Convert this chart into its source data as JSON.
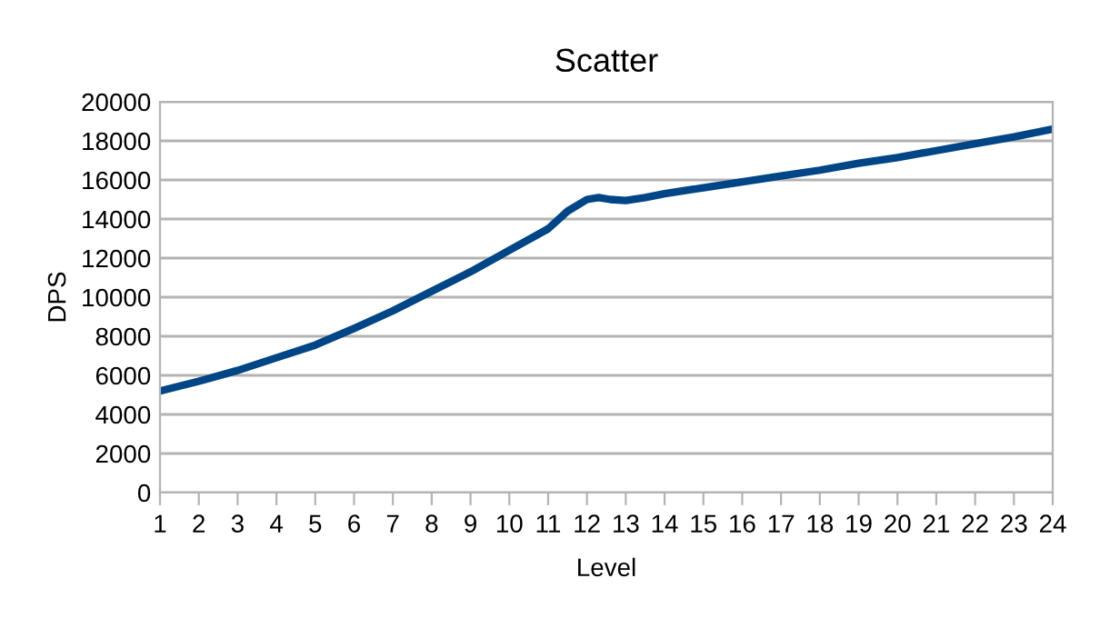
{
  "chart_data": {
    "type": "line",
    "title": "Scatter",
    "xlabel": "Level",
    "ylabel": "DPS",
    "series": [
      {
        "color": "#004586",
        "x": [
          1,
          2,
          3,
          4,
          5,
          6,
          7,
          8,
          9,
          10,
          11,
          11.5,
          12,
          12.3,
          12.6,
          13,
          13.5,
          14,
          15,
          16,
          17,
          18,
          19,
          20,
          21,
          22,
          23,
          24
        ],
        "values": [
          5200,
          5700,
          6250,
          6900,
          7550,
          8400,
          9300,
          10300,
          11300,
          12400,
          13500,
          14400,
          15000,
          15100,
          15000,
          14950,
          15100,
          15300,
          15600,
          15900,
          16200,
          16500,
          16850,
          17150,
          17500,
          17850,
          18200,
          18600
        ]
      }
    ],
    "xlim": [
      1,
      24
    ],
    "xticks": [
      1,
      2,
      3,
      4,
      5,
      6,
      7,
      8,
      9,
      10,
      11,
      12,
      13,
      14,
      15,
      16,
      17,
      18,
      19,
      20,
      21,
      22,
      23,
      24
    ],
    "ylim": [
      0,
      20000
    ],
    "yticks": [
      0,
      2000,
      4000,
      6000,
      8000,
      10000,
      12000,
      14000,
      16000,
      18000,
      20000
    ],
    "grid": "y",
    "legend": false,
    "marker": "none",
    "line_style": "solid"
  }
}
